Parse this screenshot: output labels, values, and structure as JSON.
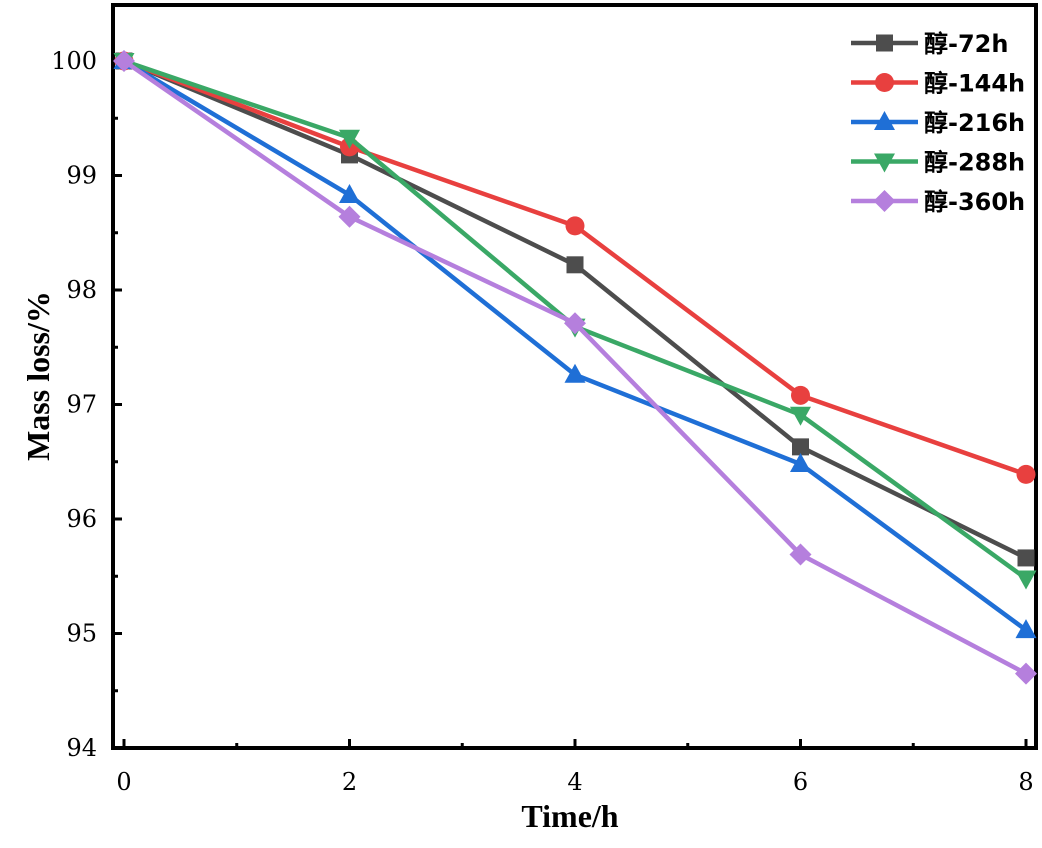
{
  "chart_data": {
    "type": "line",
    "xlabel": "Time/h",
    "ylabel": "Mass loss/%",
    "xlim": [
      0,
      8
    ],
    "ylim": [
      94,
      100.5
    ],
    "xticks": [
      0,
      2,
      4,
      6,
      8
    ],
    "xtick_labels": [
      "0",
      "2",
      "4",
      "6",
      "8"
    ],
    "yticks": [
      94,
      95,
      96,
      97,
      98,
      99,
      100
    ],
    "ytick_labels": [
      "94",
      "95",
      "96",
      "97",
      "98",
      "99",
      "100"
    ],
    "grid": false,
    "legend_position": "top-right",
    "x": [
      0,
      2,
      4,
      6,
      8
    ],
    "series": [
      {
        "name": "醇-72h",
        "color": "#4d4d4d",
        "marker": "square",
        "values": [
          100,
          99.18,
          98.22,
          96.63,
          95.66
        ]
      },
      {
        "name": "醇-144h",
        "color": "#e8403f",
        "marker": "circle",
        "values": [
          100,
          99.25,
          98.56,
          97.08,
          96.39
        ]
      },
      {
        "name": "醇-216h",
        "color": "#1f6fd6",
        "marker": "triangle-up",
        "values": [
          100,
          98.83,
          97.26,
          96.48,
          95.03
        ]
      },
      {
        "name": "醇-288h",
        "color": "#3aa866",
        "marker": "triangle-down",
        "values": [
          100,
          99.33,
          97.68,
          96.91,
          95.48
        ]
      },
      {
        "name": "醇-360h",
        "color": "#b57fdd",
        "marker": "diamond",
        "values": [
          100,
          98.64,
          97.71,
          95.69,
          94.65
        ]
      }
    ]
  }
}
